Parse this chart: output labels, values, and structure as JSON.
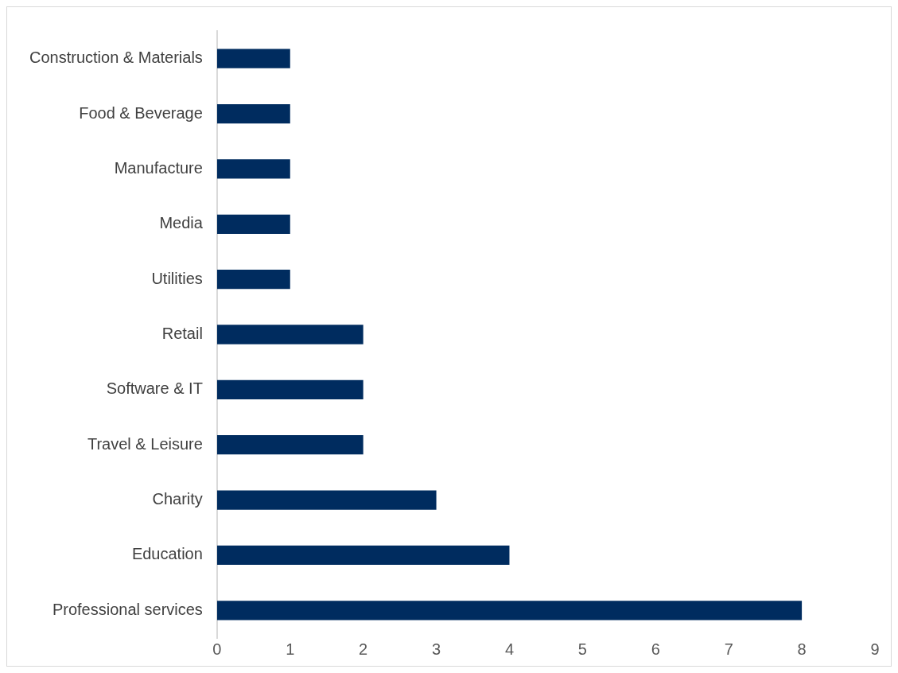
{
  "chart_data": {
    "type": "bar",
    "orientation": "horizontal",
    "categories": [
      "Construction & Materials",
      "Food & Beverage",
      "Manufacture",
      "Media",
      "Utilities",
      "Retail",
      "Software & IT",
      "Travel & Leisure",
      "Charity",
      "Education",
      "Professional services"
    ],
    "values": [
      1,
      1,
      1,
      1,
      1,
      2,
      2,
      2,
      3,
      4,
      8
    ],
    "color": "#002c5f",
    "xlim": [
      0,
      9
    ],
    "xticks": [
      0,
      1,
      2,
      3,
      4,
      5,
      6,
      7,
      8,
      9
    ],
    "grid": false,
    "legend": false
  }
}
